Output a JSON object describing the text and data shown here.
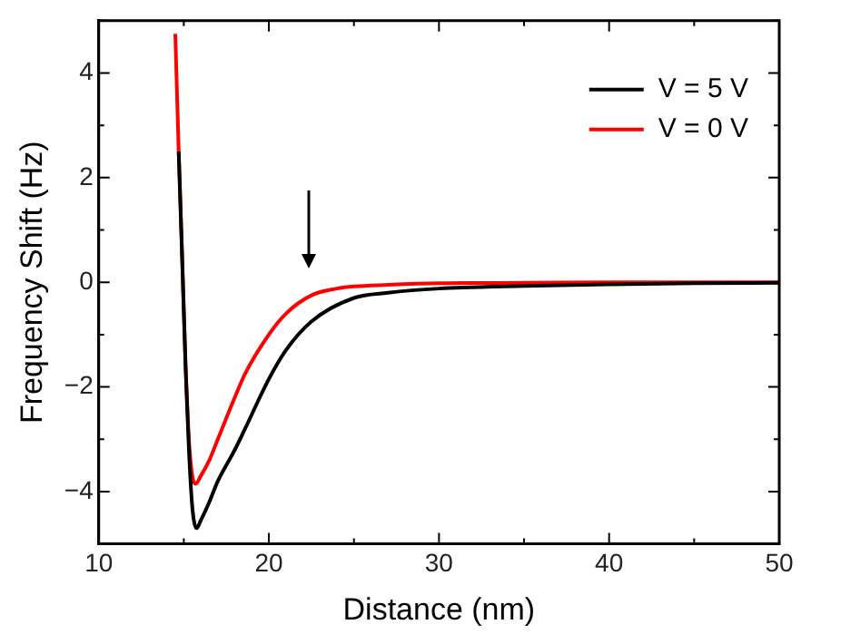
{
  "chart_data": {
    "type": "line",
    "xlabel": "Distance (nm)",
    "ylabel": "Frequency Shift (Hz)",
    "xlim": [
      10,
      50
    ],
    "xticks": [
      10,
      {
        "value": 15,
        "label": null
      },
      20,
      {
        "value": 25,
        "label": null
      },
      30,
      {
        "value": 35,
        "label": null
      },
      40,
      {
        "value": 45,
        "label": null
      },
      50
    ],
    "ylim": [
      -5,
      5
    ],
    "yticks": [
      {
        "value": -5,
        "label": null
      },
      -4,
      {
        "value": -3,
        "label": null
      },
      -2,
      {
        "value": -1,
        "label": null
      },
      0,
      {
        "value": 1,
        "label": null
      },
      2,
      {
        "value": 3,
        "label": null
      },
      4,
      {
        "value": 5,
        "label": null
      }
    ],
    "grid": false,
    "legend": "top right",
    "marker": "none",
    "line_style": "solid",
    "series": [
      {
        "name": "V = 5 V",
        "color": "#000000",
        "x": [
          14.7,
          14.9,
          15.1,
          15.3,
          15.5,
          15.75,
          16,
          16.5,
          17,
          18,
          18.6,
          20,
          21,
          22.5,
          25,
          27,
          30,
          35,
          40,
          45,
          50
        ],
        "values": [
          2.5,
          0.5,
          -1.6,
          -3.2,
          -4.3,
          -4.7,
          -4.55,
          -4.2,
          -3.8,
          -3.2,
          -2.8,
          -1.85,
          -1.3,
          -0.75,
          -0.3,
          -0.2,
          -0.12,
          -0.07,
          -0.04,
          -0.02,
          -0.01
        ]
      },
      {
        "name": "V = 0 V",
        "color": "#ff0000",
        "x": [
          14.5,
          14.7,
          14.9,
          15.1,
          15.3,
          15.5,
          15.7,
          16,
          16.5,
          17,
          18,
          18.6,
          20,
          21,
          22.5,
          24,
          25,
          27,
          30,
          35,
          40,
          50
        ],
        "values": [
          4.75,
          2.5,
          0.5,
          -1.5,
          -3.0,
          -3.7,
          -3.85,
          -3.7,
          -3.4,
          -3.0,
          -2.2,
          -1.75,
          -1.0,
          -0.6,
          -0.25,
          -0.12,
          -0.08,
          -0.05,
          -0.02,
          -0.01,
          0,
          0
        ]
      }
    ]
  }
}
